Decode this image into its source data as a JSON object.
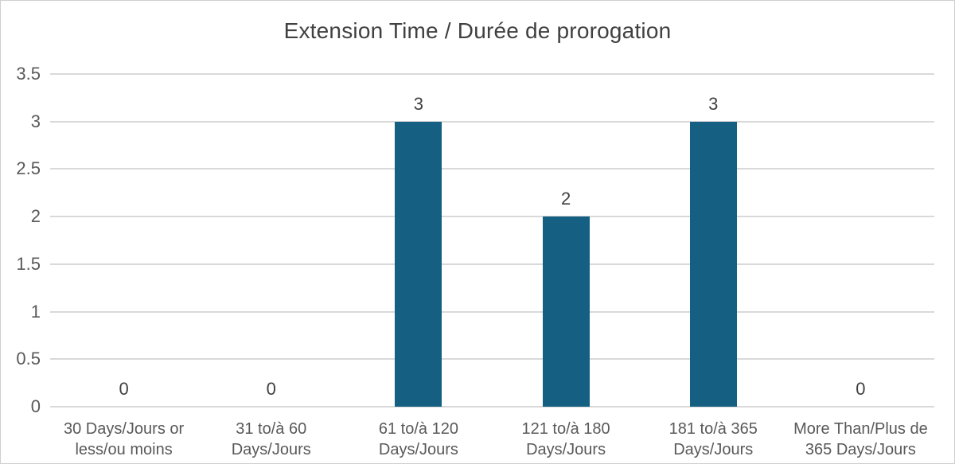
{
  "chart_data": {
    "type": "bar",
    "title": "Extension Time / Durée de prorogation",
    "categories": [
      "30 Days/Jours or\nless/ou moins",
      "31 to/à 60\nDays/Jours",
      "61 to/à 120\nDays/Jours",
      "121 to/à 180\nDays/Jours",
      "181 to/à 365\nDays/Jours",
      "More Than/Plus de\n365 Days/Jours"
    ],
    "values": [
      0,
      0,
      3,
      2,
      3,
      0
    ],
    "data_labels": [
      "0",
      "0",
      "3",
      "2",
      "3",
      "0"
    ],
    "xlabel": "",
    "ylabel": "",
    "ylim": [
      0,
      3.5
    ],
    "ytick_labels": [
      "0",
      "0.5",
      "1",
      "1.5",
      "2",
      "2.5",
      "3",
      "3.5"
    ],
    "grid": "horizontal",
    "legend": "none",
    "colors": {
      "bar": "#156082",
      "gridline": "#d9d9d9",
      "title_text": "#404040",
      "axis_text": "#595959",
      "data_label_text": "#404040",
      "border": "#cfcfcf",
      "background": "#ffffff"
    }
  }
}
